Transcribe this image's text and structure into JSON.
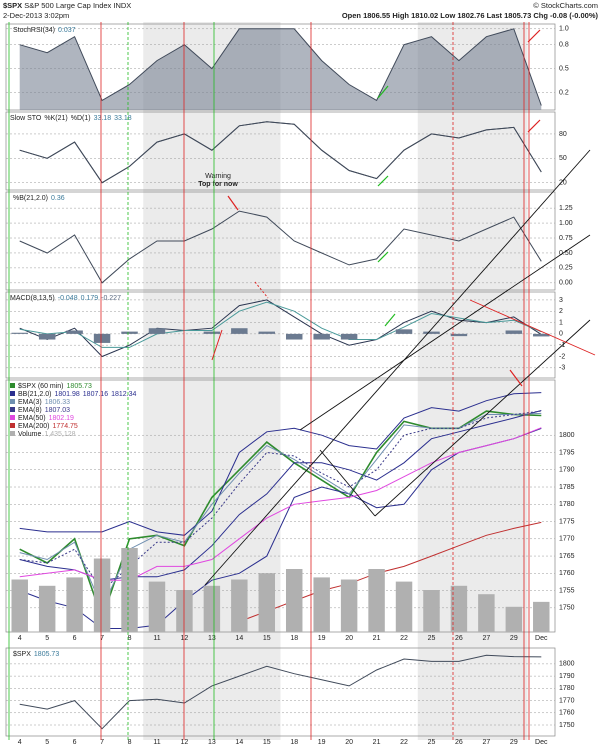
{
  "header": {
    "symbol": "$SPX",
    "name": "S&P 500 Large Cap Index",
    "exchange": "INDX",
    "date": "2-Dec-2013 3:02pm",
    "open_label": "Open",
    "open": 1806.55,
    "high_label": "High",
    "high": 1810.02,
    "low_label": "Low",
    "low": 1802.76,
    "last_label": "Last",
    "last": 1805.73,
    "chg_label": "Chg",
    "chg": -0.08,
    "chg_pct": "(-0.00%)",
    "credit": "© StockCharts.com"
  },
  "chart_data": [
    {
      "type": "line",
      "legend": "inline",
      "ylim": [
        -0.02,
        1.06
      ],
      "yticks": [
        0.2,
        0.5,
        0.8,
        {
          "value": 1,
          "label": "1.0"
        }
      ],
      "grid": true,
      "series": [
        {
          "name": "StochRSI(34)",
          "color": "#404a5a",
          "fill": "#7a8494",
          "values": [
            0.8,
            0.7,
            0.9,
            0.1,
            0.3,
            0.6,
            0.8,
            0.5,
            1,
            1,
            1,
            0.6,
            0.3,
            0.1,
            0.8,
            0.9,
            0.6,
            0.9,
            1,
            0.037
          ]
        }
      ]
    },
    {
      "type": "line",
      "legend": "inline",
      "title": "Slow STO",
      "ylim": [
        11,
        107
      ],
      "yticks": [
        20,
        50,
        80
      ],
      "grid": true,
      "annotations": [
        "Warning",
        "Top for now"
      ],
      "series": [
        {
          "name": "%K(21)",
          "color": "#404a5a",
          "values": [
            60,
            50,
            70,
            20,
            40,
            70,
            80,
            60,
            90,
            95,
            92,
            60,
            35,
            25,
            60,
            80,
            75,
            85,
            88,
            33.18
          ]
        },
        {
          "name": "%D(1)",
          "color": "#404a5a",
          "values": [
            60,
            50,
            70,
            20,
            40,
            70,
            80,
            60,
            90,
            95,
            92,
            60,
            35,
            25,
            60,
            80,
            75,
            85,
            88,
            33.18
          ]
        }
      ]
    },
    {
      "type": "line",
      "legend": "inline",
      "ylim": [
        -0.12,
        1.52
      ],
      "yticks": [
        {
          "value": 0,
          "label": "0.00"
        },
        0.25,
        {
          "value": 0.5,
          "label": "0.50"
        },
        0.75,
        {
          "value": 1,
          "label": "1.00"
        },
        1.25
      ],
      "grid": true,
      "series": [
        {
          "name": "%B(21,2.0)",
          "color": "#404a5a",
          "values": [
            0.7,
            0.5,
            0.8,
            0,
            0.4,
            0.7,
            0.7,
            0.9,
            1.2,
            1.1,
            0.7,
            0.5,
            0.3,
            0.4,
            0.9,
            0.8,
            0.7,
            0.9,
            1.1,
            0.36
          ]
        }
      ]
    },
    {
      "type": "line",
      "legend": "inline",
      "title": "MACD(8,13,5)",
      "ylim": [
        -3.9,
        3.7
      ],
      "yticks": [
        -3,
        -2,
        -1,
        0,
        1,
        2,
        3
      ],
      "grid": true,
      "series": [
        {
          "color": "#2a3550",
          "values": [
            0.5,
            -0.5,
            0.5,
            -2,
            -1,
            0.5,
            0.3,
            0.5,
            2.5,
            3,
            1.5,
            0,
            -1,
            -0.5,
            1,
            2,
            1.2,
            1,
            1.5,
            -0.048
          ]
        },
        {
          "color": "#4a9a9a",
          "values": [
            0.4,
            0,
            0.2,
            -1.2,
            -1.2,
            0,
            0.3,
            0.3,
            2,
            2.8,
            2,
            0.5,
            -0.5,
            -0.5,
            0.6,
            1.8,
            1.4,
            1,
            1.2,
            0.179
          ]
        },
        {
          "type": "bar",
          "color": "#6b7a90",
          "values": [
            0.1,
            -0.5,
            0.3,
            -0.8,
            0.2,
            0.5,
            0,
            0.2,
            0.5,
            0.2,
            -0.5,
            -0.5,
            -0.5,
            0,
            0.4,
            0.2,
            -0.2,
            0,
            0.3,
            -0.227
          ]
        }
      ]
    },
    {
      "type": "line",
      "legend": "rows",
      "ylim": [
        1743,
        1816
      ],
      "y2lim": [
        0,
        12000000
      ],
      "yticks": [
        1750,
        1755,
        1760,
        1765,
        1770,
        1775,
        1780,
        1785,
        1790,
        1795,
        1800
      ],
      "grid": true,
      "categories": [
        "4",
        "5",
        "6",
        "7",
        "8",
        "11",
        "12",
        "13",
        "14",
        "15",
        "18",
        "19",
        "20",
        "21",
        "22",
        "25",
        "26",
        "27",
        "29",
        "Dec"
      ],
      "series": [
        {
          "name": "$SPX (60 min)",
          "color": "#2e8b2e",
          "width": 1.6,
          "values": [
            1767,
            1763,
            1770,
            1747,
            1770,
            1771,
            1768,
            1782,
            1790,
            1798,
            1792,
            1787,
            1782,
            1795,
            1804,
            1802,
            1802,
            1807,
            1806,
            1805.73
          ]
        },
        {
          "name": "BB(21,2.0)",
          "color": "#2b2f8f",
          "values": [
            1755,
            1752,
            1750,
            1744,
            1744,
            1745,
            1752,
            1758,
            1760,
            1765,
            1782,
            1785,
            1783,
            1779,
            1780,
            1790,
            1795,
            1797,
            1799,
            1801.98
          ]
        },
        {
          "color": "#2b2f8f",
          "values": [
            1764,
            1762,
            1761,
            1758,
            1759,
            1759,
            1761,
            1768,
            1777,
            1783,
            1792,
            1792,
            1790,
            1787,
            1792,
            1799,
            1801,
            1803,
            1805,
            1807.16
          ]
        },
        {
          "color": "#2b2f8f",
          "values": [
            1773,
            1772,
            1772,
            1772,
            1775,
            1772,
            1771,
            1778,
            1795,
            1801,
            1802,
            1800,
            1797,
            1796,
            1805,
            1808,
            1807,
            1810,
            1812,
            1812.34
          ]
        },
        {
          "name": "EMA(3)",
          "color": "#6f8fb0",
          "values": [
            1766,
            1764,
            1769,
            1750,
            1767,
            1771,
            1769,
            1780,
            1789,
            1797,
            1793,
            1788,
            1783,
            1793,
            1803,
            1802,
            1802,
            1806,
            1806,
            1806.33
          ]
        },
        {
          "name": "EMA(8)",
          "color": "#3a3a8a",
          "dash": true,
          "values": [
            1764,
            1763,
            1767,
            1755,
            1762,
            1769,
            1769,
            1776,
            1786,
            1795,
            1794,
            1789,
            1785,
            1790,
            1800,
            1802,
            1802,
            1805,
            1806,
            1807.03
          ]
        },
        {
          "name": "EMA(50)",
          "color": "#e048e0",
          "values": [
            1759,
            1760,
            1761,
            1758,
            1758,
            1762,
            1762,
            1764,
            1770,
            1776,
            1780,
            1781,
            1782,
            1784,
            1788,
            1792,
            1795,
            1797,
            1799,
            1802.19
          ]
        },
        {
          "name": "EMA(200)",
          "color": "#c03030",
          "values": [
            null,
            null,
            null,
            null,
            null,
            null,
            null,
            null,
            1746,
            1749,
            1752,
            1755,
            1757,
            1760,
            1762,
            1765,
            1768,
            1771,
            1773,
            1774.75
          ]
        },
        {
          "name": "Volume",
          "type": "bar",
          "axis": "y2",
          "color": "#b0b0b0",
          "values": [
            2500000,
            2200000,
            2600000,
            3500000,
            4000000,
            2400000,
            2000000,
            2200000,
            2500000,
            2800000,
            3000000,
            2600000,
            2500000,
            3000000,
            2400000,
            2000000,
            2200000,
            1800000,
            1200000,
            1435128
          ],
          "value_labels": [
            null,
            null,
            null,
            null,
            null,
            null,
            null,
            null,
            null,
            null,
            null,
            null,
            null,
            null,
            null,
            null,
            null,
            null,
            null,
            "1,435,128"
          ]
        }
      ]
    },
    {
      "type": "line",
      "legend": "inline",
      "ylim": [
        1741,
        1813
      ],
      "yticks": [
        1750,
        1760,
        1770,
        1780,
        1790,
        1800
      ],
      "grid": true,
      "categories": [
        "4",
        "5",
        "6",
        "7",
        "8",
        "11",
        "12",
        "13",
        "14",
        "15",
        "18",
        "19",
        "20",
        "21",
        "22",
        "25",
        "26",
        "27",
        "29",
        "Dec"
      ],
      "series": [
        {
          "name": "$SPX",
          "color": "#404a5a",
          "values": [
            1767,
            1763,
            1770,
            1747,
            1770,
            1771,
            1768,
            1782,
            1790,
            1798,
            1792,
            1787,
            1782,
            1795,
            1804,
            1802,
            1802,
            1807,
            1806,
            1805.73
          ]
        }
      ]
    }
  ]
}
